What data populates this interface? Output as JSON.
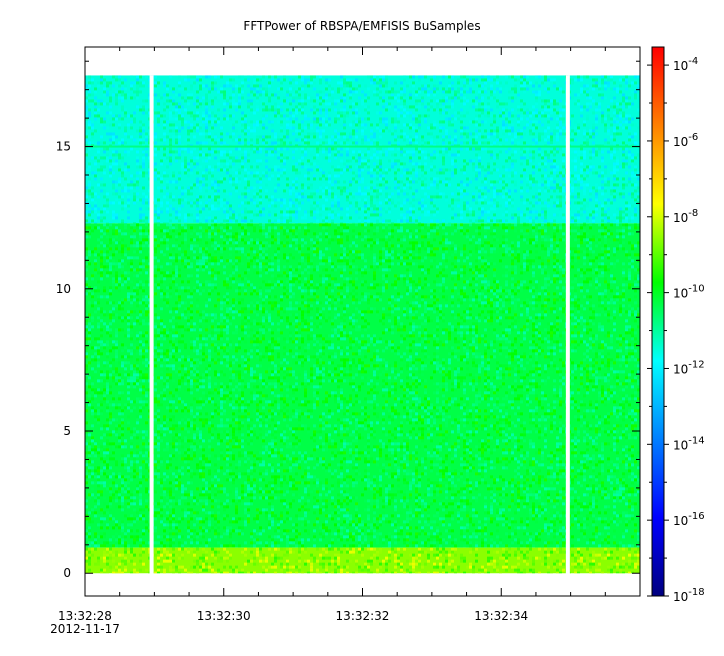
{
  "chart_data": {
    "type": "heatmap",
    "title": "FFTPower of RBSPA/EMFISIS  BuSamples",
    "xlabel": "",
    "ylabel": "",
    "x_range": [
      "13:32:28",
      "13:32:36"
    ],
    "x_ticks": [
      "13:32:28",
      "13:32:30",
      "13:32:32",
      "13:32:34"
    ],
    "x_date_label": "2012-11-17",
    "ylim": [
      -0.8,
      18.5
    ],
    "y_ticks": [
      0,
      5,
      10,
      15
    ],
    "data_y_max": 17.5,
    "data_gaps": [
      "13:32:28.96",
      "13:32:34.96"
    ],
    "colorbar": {
      "scale": "log",
      "range": [
        1e-18,
        0.0003
      ],
      "ticks": [
        {
          "base": "10",
          "exp": "-4"
        },
        {
          "base": "10",
          "exp": "-6"
        },
        {
          "base": "10",
          "exp": "-8"
        },
        {
          "base": "10",
          "exp": "-10"
        },
        {
          "base": "10",
          "exp": "-12"
        },
        {
          "base": "10",
          "exp": "-14"
        },
        {
          "base": "10",
          "exp": "-16"
        },
        {
          "base": "10",
          "exp": "-18"
        }
      ],
      "colormap": [
        "#00007f",
        "#0000ff",
        "#007fff",
        "#00ffff",
        "#00ff00",
        "#ffff00",
        "#ff7f00",
        "#ff0000"
      ]
    },
    "bands": [
      {
        "y_from": 12.3,
        "y_to": 17.5,
        "log_power": -11.5
      },
      {
        "y_from": 0.9,
        "y_to": 12.3,
        "log_power": -10.3
      },
      {
        "y_from": 0.0,
        "y_to": 0.9,
        "log_power": -8.6
      }
    ],
    "lines": [
      {
        "y": 15.0,
        "log_power": -10.8
      }
    ]
  }
}
